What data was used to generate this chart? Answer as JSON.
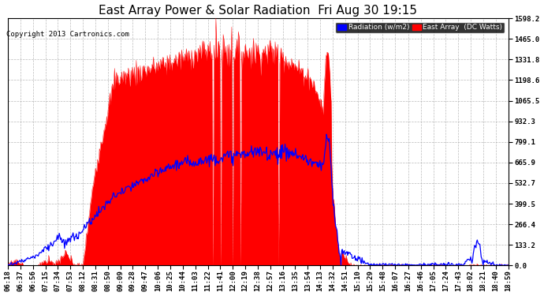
{
  "title": "East Array Power & Solar Radiation  Fri Aug 30 19:15",
  "copyright": "Copyright 2013 Cartronics.com",
  "legend_labels": [
    "Radiation (w/m2)",
    "East Array  (DC Watts)"
  ],
  "legend_colors": [
    "blue",
    "red"
  ],
  "yticks": [
    0.0,
    133.2,
    266.4,
    399.5,
    532.7,
    665.9,
    799.1,
    932.3,
    1065.5,
    1198.6,
    1331.8,
    1465.0,
    1598.2
  ],
  "ymax": 1598.2,
  "ymin": 0.0,
  "background_color": "#ffffff",
  "plot_bg_color": "#ffffff",
  "grid_color": "#aaaaaa",
  "title_fontsize": 11,
  "tick_label_fontsize": 6.5
}
